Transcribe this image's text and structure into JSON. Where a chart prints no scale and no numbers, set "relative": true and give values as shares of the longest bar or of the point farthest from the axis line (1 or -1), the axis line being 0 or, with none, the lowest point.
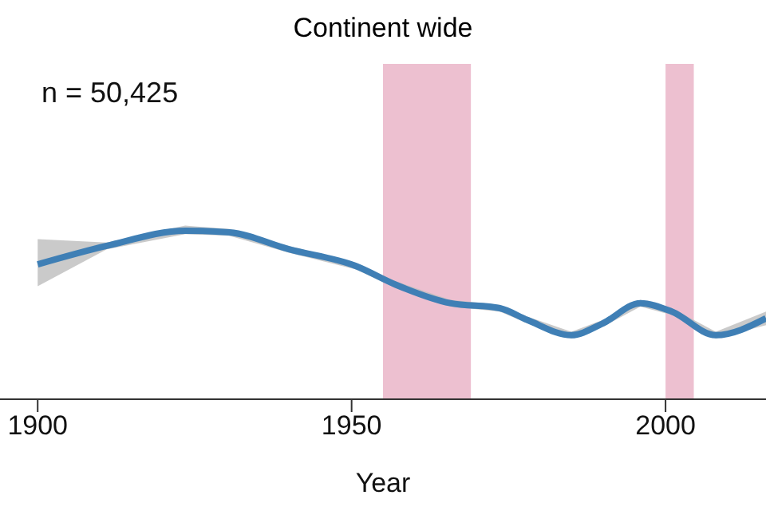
{
  "chart_data": {
    "type": "line",
    "title": "Continent wide",
    "xlabel": "Year",
    "relative": true,
    "x": [
      1900,
      1911,
      1923.5,
      1930.5,
      1940,
      1950.7,
      1957,
      1965.7,
      1973.6,
      1978,
      1985,
      1990,
      1996,
      2001,
      2008,
      2016
    ],
    "series": [
      {
        "color": "#3f7fb5",
        "values": [
          0.8,
          0.91,
          1,
          0.99,
          0.89,
          0.79,
          0.68,
          0.57,
          0.54,
          0.47,
          0.38,
          0.45,
          0.57,
          0.52,
          0.38,
          0.48
        ],
        "lower": [
          0.67,
          0.89,
          0.98,
          0.97,
          0.87,
          0.77,
          0.66,
          0.55,
          0.52,
          0.45,
          0.36,
          0.43,
          0.55,
          0.5,
          0.36,
          0.44
        ],
        "upper": [
          0.95,
          0.93,
          1.03,
          1.01,
          0.91,
          0.81,
          0.7,
          0.59,
          0.56,
          0.49,
          0.4,
          0.47,
          0.59,
          0.54,
          0.4,
          0.52
        ]
      }
    ],
    "xlim": [
      1894,
      2016
    ],
    "xticks": [
      1900,
      1950,
      2000
    ],
    "bands": [
      {
        "axis": "x",
        "from": 1955,
        "to": 1969,
        "color": "#ebb9cb"
      },
      {
        "axis": "x",
        "from": 2000,
        "to": 2004.5,
        "color": "#ebb9cb"
      }
    ],
    "annotations": [
      "n = 50,425"
    ],
    "grid": false,
    "legend": false,
    "marker": "none",
    "line_style": "solid"
  }
}
